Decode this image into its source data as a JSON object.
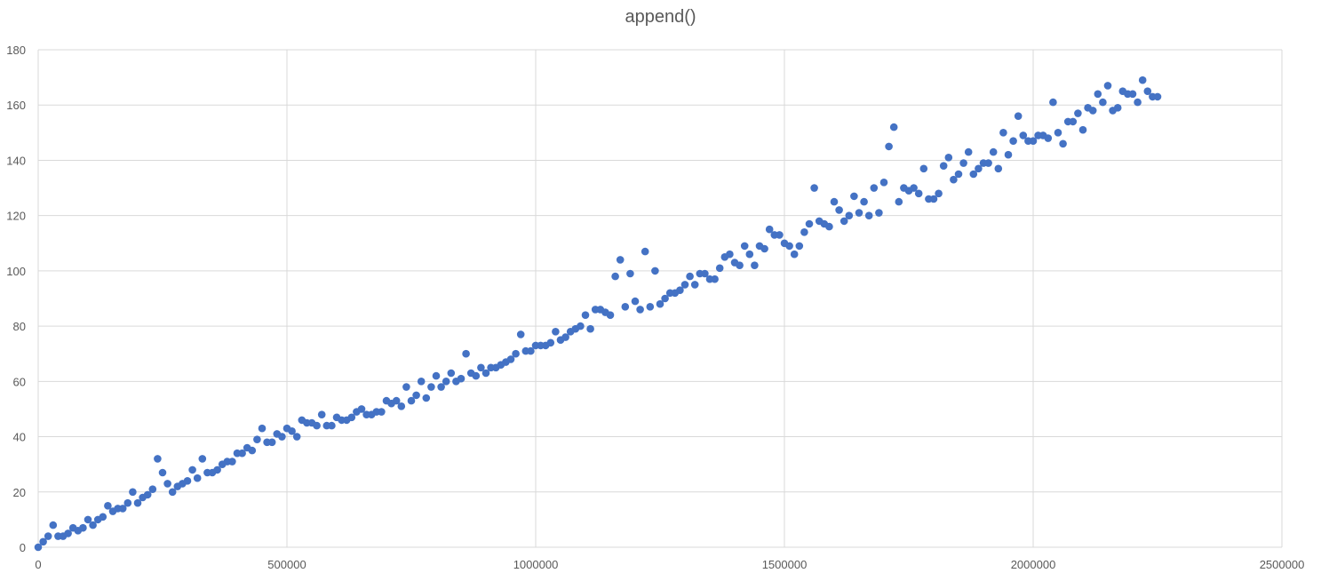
{
  "chart_data": {
    "type": "scatter",
    "title": "append()",
    "xlabel": "",
    "ylabel": "",
    "xlim": [
      0,
      2500000
    ],
    "ylim": [
      0,
      180
    ],
    "x_ticks": [
      0,
      500000,
      1000000,
      1500000,
      2000000,
      2500000
    ],
    "y_ticks": [
      0,
      20,
      40,
      60,
      80,
      100,
      120,
      140,
      160,
      180
    ],
    "grid": true,
    "legend": "none",
    "marker_color": "#4472C4",
    "series": [
      {
        "points": [
          [
            0,
            0
          ],
          [
            10000,
            2
          ],
          [
            20000,
            4
          ],
          [
            30000,
            8
          ],
          [
            40000,
            4
          ],
          [
            50000,
            4
          ],
          [
            60000,
            5
          ],
          [
            70000,
            7
          ],
          [
            80000,
            6
          ],
          [
            90000,
            7
          ],
          [
            100000,
            10
          ],
          [
            110000,
            8
          ],
          [
            120000,
            10
          ],
          [
            130000,
            11
          ],
          [
            140000,
            15
          ],
          [
            150000,
            13
          ],
          [
            160000,
            14
          ],
          [
            170000,
            14
          ],
          [
            180000,
            16
          ],
          [
            190000,
            20
          ],
          [
            200000,
            16
          ],
          [
            210000,
            18
          ],
          [
            220000,
            19
          ],
          [
            230000,
            21
          ],
          [
            240000,
            32
          ],
          [
            250000,
            27
          ],
          [
            260000,
            23
          ],
          [
            270000,
            20
          ],
          [
            280000,
            22
          ],
          [
            290000,
            23
          ],
          [
            300000,
            24
          ],
          [
            310000,
            28
          ],
          [
            320000,
            25
          ],
          [
            330000,
            32
          ],
          [
            340000,
            27
          ],
          [
            350000,
            27
          ],
          [
            360000,
            28
          ],
          [
            370000,
            30
          ],
          [
            380000,
            31
          ],
          [
            390000,
            31
          ],
          [
            400000,
            34
          ],
          [
            410000,
            34
          ],
          [
            420000,
            36
          ],
          [
            430000,
            35
          ],
          [
            440000,
            39
          ],
          [
            450000,
            43
          ],
          [
            460000,
            38
          ],
          [
            470000,
            38
          ],
          [
            480000,
            41
          ],
          [
            490000,
            40
          ],
          [
            500000,
            43
          ],
          [
            510000,
            42
          ],
          [
            520000,
            40
          ],
          [
            530000,
            46
          ],
          [
            540000,
            45
          ],
          [
            550000,
            45
          ],
          [
            560000,
            44
          ],
          [
            570000,
            48
          ],
          [
            580000,
            44
          ],
          [
            590000,
            44
          ],
          [
            600000,
            47
          ],
          [
            610000,
            46
          ],
          [
            620000,
            46
          ],
          [
            630000,
            47
          ],
          [
            640000,
            49
          ],
          [
            650000,
            50
          ],
          [
            660000,
            48
          ],
          [
            670000,
            48
          ],
          [
            680000,
            49
          ],
          [
            690000,
            49
          ],
          [
            700000,
            53
          ],
          [
            710000,
            52
          ],
          [
            720000,
            53
          ],
          [
            730000,
            51
          ],
          [
            740000,
            58
          ],
          [
            750000,
            53
          ],
          [
            760000,
            55
          ],
          [
            770000,
            60
          ],
          [
            780000,
            54
          ],
          [
            790000,
            58
          ],
          [
            800000,
            62
          ],
          [
            810000,
            58
          ],
          [
            820000,
            60
          ],
          [
            830000,
            63
          ],
          [
            840000,
            60
          ],
          [
            850000,
            61
          ],
          [
            860000,
            70
          ],
          [
            870000,
            63
          ],
          [
            880000,
            62
          ],
          [
            890000,
            65
          ],
          [
            900000,
            63
          ],
          [
            910000,
            65
          ],
          [
            920000,
            65
          ],
          [
            930000,
            66
          ],
          [
            940000,
            67
          ],
          [
            950000,
            68
          ],
          [
            960000,
            70
          ],
          [
            970000,
            77
          ],
          [
            980000,
            71
          ],
          [
            990000,
            71
          ],
          [
            1000000,
            73
          ],
          [
            1010000,
            73
          ],
          [
            1020000,
            73
          ],
          [
            1030000,
            74
          ],
          [
            1040000,
            78
          ],
          [
            1050000,
            75
          ],
          [
            1060000,
            76
          ],
          [
            1070000,
            78
          ],
          [
            1080000,
            79
          ],
          [
            1090000,
            80
          ],
          [
            1100000,
            84
          ],
          [
            1110000,
            79
          ],
          [
            1120000,
            86
          ],
          [
            1130000,
            86
          ],
          [
            1140000,
            85
          ],
          [
            1150000,
            84
          ],
          [
            1160000,
            98
          ],
          [
            1170000,
            104
          ],
          [
            1180000,
            87
          ],
          [
            1190000,
            99
          ],
          [
            1200000,
            89
          ],
          [
            1210000,
            86
          ],
          [
            1220000,
            107
          ],
          [
            1230000,
            87
          ],
          [
            1240000,
            100
          ],
          [
            1250000,
            88
          ],
          [
            1260000,
            90
          ],
          [
            1270000,
            92
          ],
          [
            1280000,
            92
          ],
          [
            1290000,
            93
          ],
          [
            1300000,
            95
          ],
          [
            1310000,
            98
          ],
          [
            1320000,
            95
          ],
          [
            1330000,
            99
          ],
          [
            1340000,
            99
          ],
          [
            1350000,
            97
          ],
          [
            1360000,
            97
          ],
          [
            1370000,
            101
          ],
          [
            1380000,
            105
          ],
          [
            1390000,
            106
          ],
          [
            1400000,
            103
          ],
          [
            1410000,
            102
          ],
          [
            1420000,
            109
          ],
          [
            1430000,
            106
          ],
          [
            1440000,
            102
          ],
          [
            1450000,
            109
          ],
          [
            1460000,
            108
          ],
          [
            1470000,
            115
          ],
          [
            1480000,
            113
          ],
          [
            1490000,
            113
          ],
          [
            1500000,
            110
          ],
          [
            1510000,
            109
          ],
          [
            1520000,
            106
          ],
          [
            1530000,
            109
          ],
          [
            1540000,
            114
          ],
          [
            1550000,
            117
          ],
          [
            1560000,
            130
          ],
          [
            1570000,
            118
          ],
          [
            1580000,
            117
          ],
          [
            1590000,
            116
          ],
          [
            1600000,
            125
          ],
          [
            1610000,
            122
          ],
          [
            1620000,
            118
          ],
          [
            1630000,
            120
          ],
          [
            1640000,
            127
          ],
          [
            1650000,
            121
          ],
          [
            1660000,
            125
          ],
          [
            1670000,
            120
          ],
          [
            1680000,
            130
          ],
          [
            1690000,
            121
          ],
          [
            1700000,
            132
          ],
          [
            1710000,
            145
          ],
          [
            1720000,
            152
          ],
          [
            1730000,
            125
          ],
          [
            1740000,
            130
          ],
          [
            1750000,
            129
          ],
          [
            1760000,
            130
          ],
          [
            1770000,
            128
          ],
          [
            1780000,
            137
          ],
          [
            1790000,
            126
          ],
          [
            1800000,
            126
          ],
          [
            1810000,
            128
          ],
          [
            1820000,
            138
          ],
          [
            1830000,
            141
          ],
          [
            1840000,
            133
          ],
          [
            1850000,
            135
          ],
          [
            1860000,
            139
          ],
          [
            1870000,
            143
          ],
          [
            1880000,
            135
          ],
          [
            1890000,
            137
          ],
          [
            1900000,
            139
          ],
          [
            1910000,
            139
          ],
          [
            1920000,
            143
          ],
          [
            1930000,
            137
          ],
          [
            1940000,
            150
          ],
          [
            1950000,
            142
          ],
          [
            1960000,
            147
          ],
          [
            1970000,
            156
          ],
          [
            1980000,
            149
          ],
          [
            1990000,
            147
          ],
          [
            2000000,
            147
          ],
          [
            2010000,
            149
          ],
          [
            2020000,
            149
          ],
          [
            2030000,
            148
          ],
          [
            2040000,
            161
          ],
          [
            2050000,
            150
          ],
          [
            2060000,
            146
          ],
          [
            2070000,
            154
          ],
          [
            2080000,
            154
          ],
          [
            2090000,
            157
          ],
          [
            2100000,
            151
          ],
          [
            2110000,
            159
          ],
          [
            2120000,
            158
          ],
          [
            2130000,
            164
          ],
          [
            2140000,
            161
          ],
          [
            2150000,
            167
          ],
          [
            2160000,
            158
          ],
          [
            2170000,
            159
          ],
          [
            2180000,
            165
          ],
          [
            2190000,
            164
          ],
          [
            2200000,
            164
          ],
          [
            2210000,
            161
          ],
          [
            2220000,
            169
          ],
          [
            2230000,
            165
          ],
          [
            2240000,
            163
          ],
          [
            2250000,
            163
          ]
        ]
      }
    ]
  }
}
